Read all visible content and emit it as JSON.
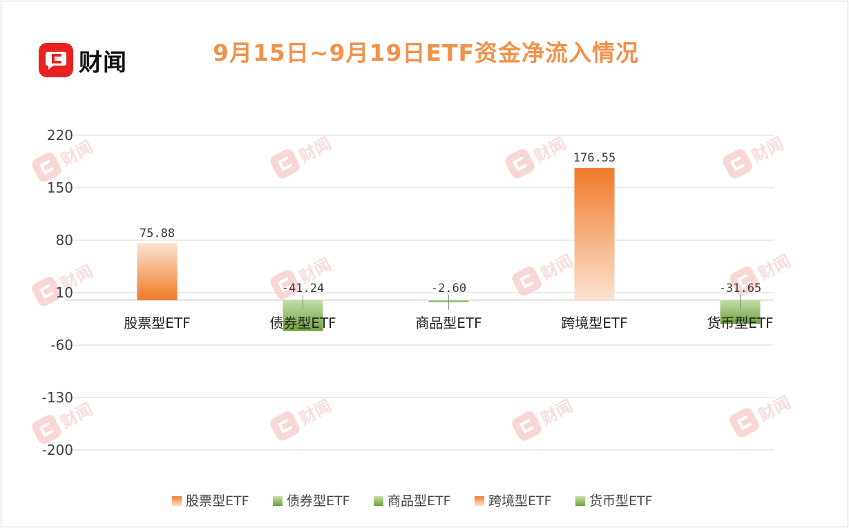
{
  "brand": {
    "name": "财闻",
    "watermark": "财闻"
  },
  "colors": {
    "inflow": "#f07a28",
    "inflow_light": "#fde3d0",
    "outflow": "#6fa13c",
    "outflow_light": "#c5dfa8",
    "grid": "#d9d9d9",
    "title": "#f0924a"
  },
  "chart_data": {
    "type": "bar",
    "title": "9月15日~9月19日ETF资金净流入情况",
    "categories": [
      "股票型ETF",
      "债券型ETF",
      "商品型ETF",
      "跨境型ETF",
      "货币型ETF"
    ],
    "values": [
      75.88,
      -41.24,
      -2.6,
      176.55,
      -31.65
    ],
    "data_labels": [
      "75.88",
      "-41.24",
      "-2.60",
      "176.55",
      "-31.65"
    ],
    "series_colors": [
      "inflow",
      "outflow",
      "outflow",
      "inflow",
      "outflow"
    ],
    "y_ticks": [
      220,
      150,
      80,
      10,
      -60,
      -130,
      -200
    ],
    "y_tick_labels": [
      "220",
      "150",
      "80",
      "10",
      "-60",
      "-130",
      "-200"
    ],
    "ylim": [
      -200,
      220
    ],
    "baseline": 0,
    "grid": true,
    "legend_position": "bottom",
    "legend": [
      {
        "label": "股票型ETF",
        "color": "inflow"
      },
      {
        "label": "债券型ETF",
        "color": "outflow"
      },
      {
        "label": "商品型ETF",
        "color": "outflow"
      },
      {
        "label": "跨境型ETF",
        "color": "inflow"
      },
      {
        "label": "货币型ETF",
        "color": "outflow"
      }
    ]
  }
}
